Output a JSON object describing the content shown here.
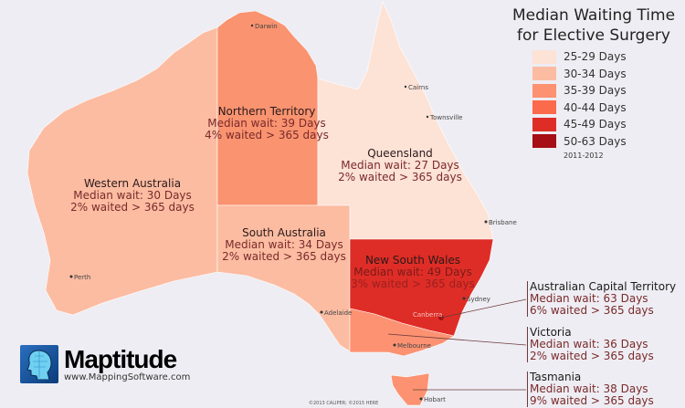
{
  "legend": {
    "title_line1": "Median Waiting Time",
    "title_line2": "for Elective Surgery",
    "classes": [
      {
        "label": "25-29 Days",
        "color": "#fde2d6"
      },
      {
        "label": "30-34 Days",
        "color": "#fcbca2"
      },
      {
        "label": "35-39 Days",
        "color": "#fc9272"
      },
      {
        "label": "40-44 Days",
        "color": "#fb6a4a"
      },
      {
        "label": "45-49 Days",
        "color": "#de2d26"
      },
      {
        "label": "50-63 Days",
        "color": "#a50f15"
      }
    ],
    "period": "2011-2012"
  },
  "states": {
    "wa": {
      "name": "Western Australia",
      "wait": "Median wait: 30 Days",
      "pct": "2% waited > 365 days",
      "color": "#fcbca2"
    },
    "nt": {
      "name": "Northern Territory",
      "wait": "Median wait: 39 Days",
      "pct": "4% waited > 365 days",
      "color": "#f99370"
    },
    "qld": {
      "name": "Queensland",
      "wait": "Median wait: 27 Days",
      "pct": "2% waited > 365 days",
      "color": "#fde2d6"
    },
    "sa": {
      "name": "South Australia",
      "wait": "Median wait: 34 Days",
      "pct": "2% waited > 365 days",
      "color": "#fcbca2"
    },
    "nsw": {
      "name": "New South Wales",
      "wait": "Median wait: 49 Days",
      "pct": "3% waited > 365 days",
      "color": "#de2d26"
    },
    "act": {
      "name": "Australian Capital Territory",
      "wait": "Median wait: 63 Days",
      "pct": "6% waited > 365 days",
      "color": "#a50f15"
    },
    "vic": {
      "name": "Victoria",
      "wait": "Median wait: 36 Days",
      "pct": "2% waited > 365 days",
      "color": "#fc9272"
    },
    "tas": {
      "name": "Tasmania",
      "wait": "Median wait: 38 Days",
      "pct": "9% waited > 365 days",
      "color": "#fc9272"
    }
  },
  "cities": {
    "darwin": "Darwin",
    "cairns": "Cairns",
    "townsville": "Townsville",
    "brisbane": "Brisbane",
    "sydney": "Sydney",
    "canberra": "Canberra",
    "melbourne": "Melbourne",
    "adelaide": "Adelaide",
    "perth": "Perth",
    "hobart": "Hobart"
  },
  "branding": {
    "name": "Maptitude",
    "url": "www.MappingSoftware.com",
    "copyright": "©2013 CALIPER; ©2015 HERE"
  }
}
